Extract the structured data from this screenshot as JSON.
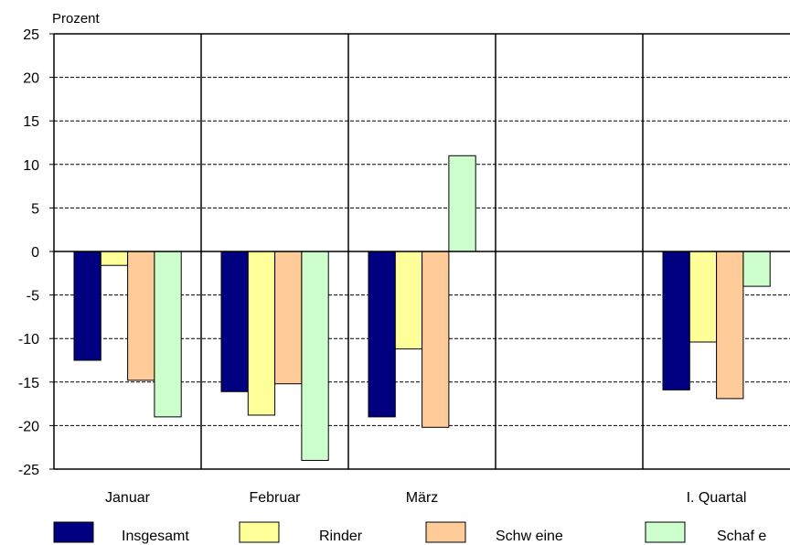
{
  "chart_data": {
    "type": "bar",
    "ylabel": "Prozent",
    "ylim": [
      -25,
      25
    ],
    "ytick_step": 5,
    "categories": [
      "Januar",
      "Februar",
      "März",
      "",
      "I. Quartal"
    ],
    "series": [
      {
        "name": "Insgesamt",
        "color": "#000080",
        "values": [
          -12.5,
          -16.1,
          -19.0,
          null,
          -15.9
        ]
      },
      {
        "name": "Rinder",
        "color": "#FFFF99",
        "values": [
          -1.6,
          -18.8,
          -11.2,
          null,
          -10.4
        ]
      },
      {
        "name": "Schw eine",
        "color": "#FFCC99",
        "values": [
          -14.8,
          -15.2,
          -20.2,
          null,
          -16.9
        ]
      },
      {
        "name": "Schaf e",
        "color": "#CCFFCC",
        "values": [
          -19.0,
          -24.0,
          11.0,
          null,
          -4.0
        ]
      }
    ],
    "grid": {
      "horizontal": "dashed",
      "vertical_category_separators": true
    },
    "legend": "bottom"
  }
}
